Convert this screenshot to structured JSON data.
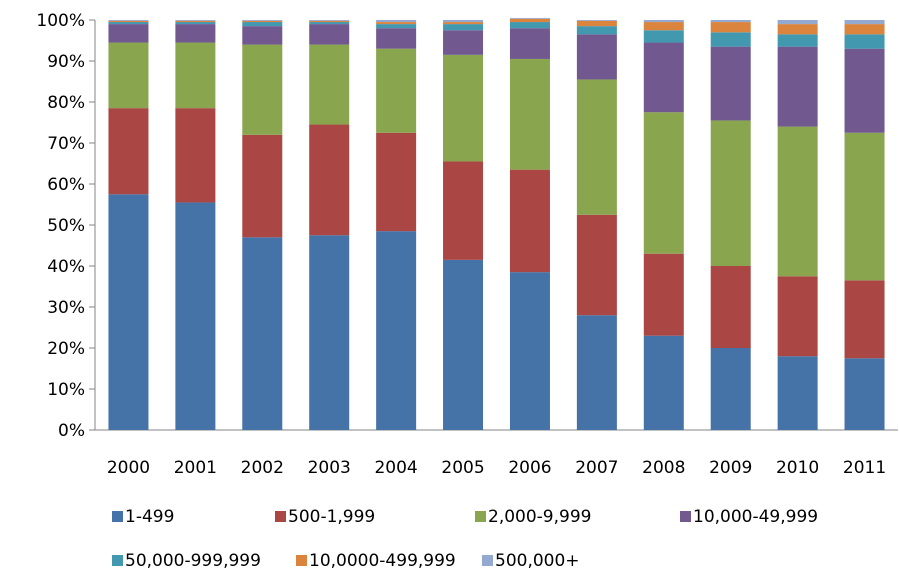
{
  "chart_data": {
    "type": "bar",
    "stacked": true,
    "percent": true,
    "categories": [
      "2000",
      "2001",
      "2002",
      "2003",
      "2004",
      "2005",
      "2006",
      "2007",
      "2008",
      "2009",
      "2010",
      "2011"
    ],
    "ylim": [
      0,
      100
    ],
    "yticks": [
      "0%",
      "10%",
      "20%",
      "30%",
      "40%",
      "50%",
      "60%",
      "70%",
      "80%",
      "90%",
      "100%"
    ],
    "ytick_values": [
      0,
      10,
      20,
      30,
      40,
      50,
      60,
      70,
      80,
      90,
      100
    ],
    "grid": false,
    "legend_position": "bottom",
    "series": [
      {
        "name": "1-499",
        "color": "#4572a7",
        "values": [
          57.5,
          55.5,
          47,
          47.5,
          48.5,
          41.5,
          38.5,
          28,
          23,
          20,
          18,
          17.5
        ]
      },
      {
        "name": "500-1,999",
        "color": "#aa4643",
        "values": [
          21,
          23,
          25,
          27,
          24,
          24,
          25,
          24.5,
          20,
          20,
          19.5,
          19
        ]
      },
      {
        "name": "2,000-9,999",
        "color": "#89a54e",
        "values": [
          16,
          16,
          22,
          19.5,
          20.5,
          26,
          27,
          33,
          34.5,
          35.5,
          36.5,
          36
        ]
      },
      {
        "name": "10,000-49,999",
        "color": "#71588f",
        "values": [
          4.5,
          4.5,
          4.5,
          5,
          5,
          6,
          7.5,
          11,
          17,
          18,
          19.5,
          20.5
        ]
      },
      {
        "name": "50,000-999,999",
        "color": "#4198af",
        "values": [
          0.5,
          0.5,
          1,
          0.5,
          1,
          1.5,
          1.5,
          2,
          3,
          3.5,
          3,
          3.5
        ]
      },
      {
        "name": "10,0000-499,999",
        "color": "#db843d",
        "values": [
          0.3,
          0.3,
          0.3,
          0.3,
          0.5,
          0.5,
          0.8,
          1.3,
          2,
          2.5,
          2.5,
          2.5
        ]
      },
      {
        "name": "500,000+",
        "color": "#93a9cf",
        "values": [
          0.2,
          0.2,
          0.2,
          0.2,
          0.5,
          0.5,
          0.2,
          0.2,
          0.5,
          0.5,
          1,
          1
        ]
      }
    ]
  }
}
